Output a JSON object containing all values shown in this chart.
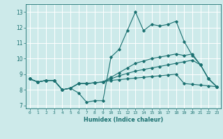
{
  "title": "",
  "xlabel": "Humidex (Indice chaleur)",
  "bg_color": "#cdeaea",
  "line_color": "#1a7070",
  "grid_color": "#ffffff",
  "ylim": [
    6.8,
    13.5
  ],
  "xlim": [
    -0.5,
    23.5
  ],
  "yticks": [
    7,
    8,
    9,
    10,
    11,
    12,
    13
  ],
  "xticks": [
    0,
    1,
    2,
    3,
    4,
    5,
    6,
    7,
    8,
    9,
    10,
    11,
    12,
    13,
    14,
    15,
    16,
    17,
    18,
    19,
    20,
    21,
    22,
    23
  ],
  "line1": [
    8.7,
    8.5,
    8.6,
    8.6,
    8.0,
    8.1,
    7.8,
    7.2,
    7.3,
    7.3,
    10.1,
    10.6,
    11.8,
    13.0,
    11.8,
    12.2,
    12.1,
    12.2,
    12.4,
    11.1,
    10.2,
    9.6,
    8.7,
    8.2
  ],
  "line2": [
    8.7,
    8.5,
    8.6,
    8.6,
    8.0,
    8.1,
    8.4,
    8.4,
    8.45,
    8.5,
    8.6,
    8.65,
    8.7,
    8.75,
    8.8,
    8.85,
    8.9,
    8.95,
    9.0,
    8.4,
    8.35,
    8.3,
    8.25,
    8.2
  ],
  "line3": [
    8.7,
    8.5,
    8.6,
    8.6,
    8.0,
    8.1,
    8.4,
    8.4,
    8.45,
    8.5,
    8.7,
    8.9,
    9.05,
    9.2,
    9.3,
    9.4,
    9.5,
    9.6,
    9.7,
    9.8,
    9.9,
    9.6,
    8.7,
    8.2
  ],
  "line4": [
    8.7,
    8.5,
    8.6,
    8.6,
    8.0,
    8.1,
    8.4,
    8.4,
    8.45,
    8.5,
    8.8,
    9.1,
    9.4,
    9.7,
    9.85,
    10.0,
    10.1,
    10.2,
    10.3,
    10.2,
    10.3,
    9.6,
    8.7,
    8.2
  ]
}
